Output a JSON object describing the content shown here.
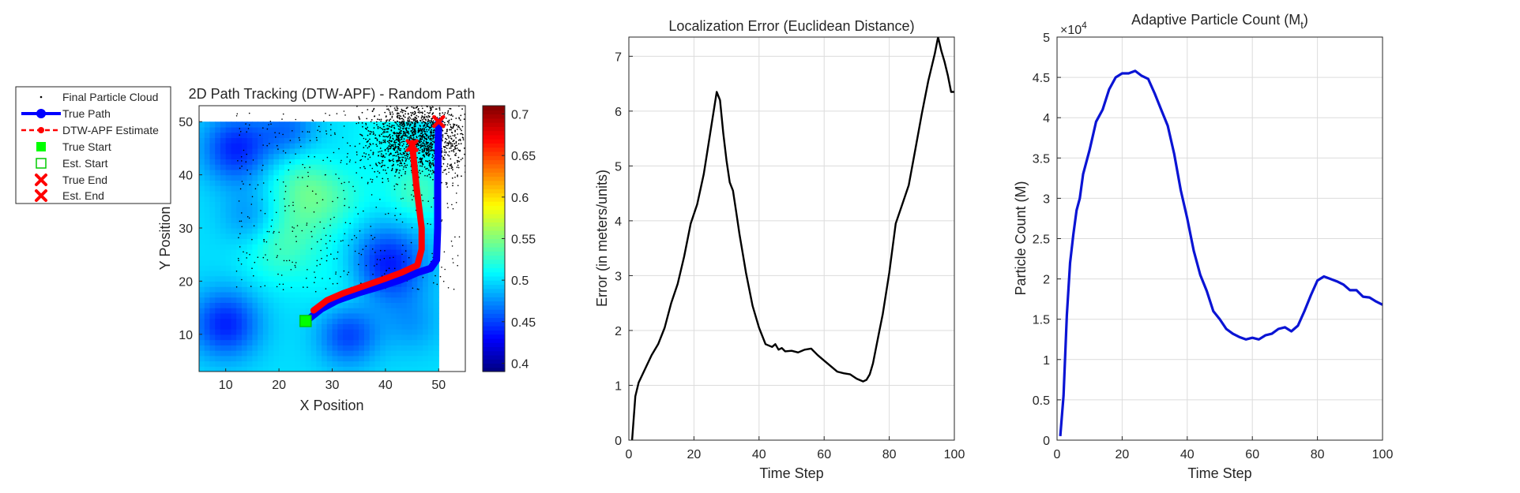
{
  "colors": {
    "true_path": "#0000ff",
    "estimate": "#ff0000",
    "true_start": "#00ff00",
    "est_start": "#00cc00",
    "particles": "#000000",
    "error_line": "#000000",
    "count_line": "#0a14d4",
    "grid": "#dcdcdc"
  },
  "chart_data": [
    {
      "type": "heatmap",
      "title": "2D Path Tracking (DTW-APF) - Random Path",
      "xlabel": "X Position",
      "ylabel": "Y Position",
      "xlim": [
        5,
        55
      ],
      "ylim": [
        3,
        53
      ],
      "xticks": [
        "10",
        "20",
        "30",
        "40",
        "50"
      ],
      "yticks": [
        "10",
        "20",
        "30",
        "40",
        "50"
      ],
      "colormap": "jet",
      "colorbar": {
        "clim": [
          0.39,
          0.71
        ],
        "ticks": [
          "0.4",
          "0.45",
          "0.5",
          "0.55",
          "0.6",
          "0.65",
          "0.7"
        ]
      },
      "map_extent": {
        "x": [
          5,
          50
        ],
        "y": [
          3,
          50
        ]
      },
      "legend_position": "outside-left",
      "legend": [
        {
          "name": "Final Particle Cloud",
          "icon": "dot"
        },
        {
          "name": "True Path",
          "icon": "line-circle"
        },
        {
          "name": "DTW-APF Estimate",
          "icon": "dashed-dot"
        },
        {
          "name": "True Start",
          "icon": "filled-square"
        },
        {
          "name": "Est. Start",
          "icon": "open-square"
        },
        {
          "name": "True End",
          "icon": "x"
        },
        {
          "name": "Est. End",
          "icon": "x"
        }
      ],
      "series": [
        {
          "name": "True Path",
          "points": [
            [
              25.5,
              12.8
            ],
            [
              28,
              14.8
            ],
            [
              31,
              16.4
            ],
            [
              35,
              17.8
            ],
            [
              39,
              19.0
            ],
            [
              43,
              20.3
            ],
            [
              46,
              21.6
            ],
            [
              48.5,
              22.4
            ],
            [
              49.6,
              24
            ],
            [
              49.8,
              30
            ],
            [
              49.8,
              38
            ],
            [
              49.9,
              45
            ],
            [
              50,
              50
            ]
          ]
        },
        {
          "name": "DTW-APF Estimate",
          "points": [
            [
              26.5,
              14.5
            ],
            [
              29,
              16.4
            ],
            [
              32,
              17.7
            ],
            [
              36,
              19.1
            ],
            [
              40,
              20.5
            ],
            [
              43,
              21.6
            ],
            [
              46,
              23.0
            ],
            [
              46.8,
              26
            ],
            [
              46.8,
              30
            ],
            [
              46.3,
              34
            ],
            [
              45.8,
              38
            ],
            [
              45.4,
              42
            ],
            [
              45.0,
              46
            ]
          ]
        }
      ],
      "markers": {
        "true_start": [
          25,
          12.5
        ],
        "est_start": [
          25,
          12.5
        ],
        "true_end": [
          50,
          50
        ],
        "est_end": [
          45,
          45.5
        ]
      }
    },
    {
      "type": "line",
      "title": "Localization Error (Euclidean Distance)",
      "xlabel": "Time Step",
      "ylabel": "Error (in meters/units)",
      "xlim": [
        0,
        100
      ],
      "ylim": [
        0,
        7.35
      ],
      "xticks": [
        "0",
        "20",
        "40",
        "60",
        "80",
        "100"
      ],
      "yticks": [
        "0",
        "1",
        "2",
        "3",
        "4",
        "5",
        "6",
        "7"
      ],
      "grid": true,
      "series": [
        {
          "name": "Localization Error",
          "x": [
            1,
            2,
            3,
            5,
            7,
            9,
            11,
            13,
            15,
            17,
            19,
            21,
            23,
            25,
            27,
            28,
            29,
            30,
            31,
            32,
            33,
            34,
            35,
            36,
            38,
            40,
            42,
            44,
            45,
            46,
            47,
            48,
            50,
            52,
            54,
            56,
            58,
            60,
            62,
            64,
            66,
            68,
            70,
            72,
            73,
            74,
            75,
            76,
            77,
            78,
            80,
            82,
            84,
            86,
            88,
            90,
            92,
            94,
            95,
            96,
            97,
            98,
            99,
            100
          ],
          "y": [
            0.0,
            0.8,
            1.05,
            1.3,
            1.55,
            1.75,
            2.05,
            2.5,
            2.85,
            3.35,
            3.95,
            4.3,
            4.85,
            5.6,
            6.35,
            6.2,
            5.6,
            5.1,
            4.7,
            4.55,
            4.15,
            3.75,
            3.4,
            3.05,
            2.45,
            2.05,
            1.75,
            1.7,
            1.75,
            1.65,
            1.68,
            1.62,
            1.63,
            1.6,
            1.65,
            1.67,
            1.55,
            1.45,
            1.35,
            1.25,
            1.22,
            1.2,
            1.12,
            1.07,
            1.1,
            1.2,
            1.4,
            1.7,
            2.0,
            2.3,
            3.05,
            3.95,
            4.3,
            4.65,
            5.3,
            5.95,
            6.55,
            7.05,
            7.35,
            7.1,
            6.9,
            6.65,
            6.35,
            6.35
          ]
        }
      ]
    },
    {
      "type": "line",
      "title": "Adaptive Particle Count (M",
      "title_subscript": "t",
      "title_suffix": ")",
      "xlabel": "Time Step",
      "ylabel": "Particle Count (M)",
      "exponent_label": "×10",
      "exponent_power": "4",
      "xlim": [
        0,
        100
      ],
      "ylim": [
        0,
        5
      ],
      "xticks": [
        "0",
        "20",
        "40",
        "60",
        "80",
        "100"
      ],
      "yticks": [
        "0",
        "0.5",
        "1",
        "1.5",
        "2",
        "2.5",
        "3",
        "3.5",
        "4",
        "4.5",
        "5"
      ],
      "grid": true,
      "series": [
        {
          "name": "Particle Count",
          "x": [
            1,
            2,
            3,
            4,
            5,
            6,
            7,
            8,
            10,
            12,
            14,
            16,
            18,
            20,
            22,
            24,
            25,
            26,
            28,
            30,
            32,
            34,
            36,
            38,
            40,
            42,
            44,
            46,
            48,
            50,
            52,
            54,
            56,
            58,
            60,
            62,
            64,
            66,
            68,
            70,
            72,
            74,
            76,
            78,
            80,
            82,
            84,
            86,
            88,
            90,
            92,
            94,
            96,
            98,
            100
          ],
          "y": [
            0.05,
            0.55,
            1.55,
            2.2,
            2.55,
            2.85,
            3.0,
            3.3,
            3.6,
            3.95,
            4.1,
            4.35,
            4.5,
            4.55,
            4.55,
            4.58,
            4.55,
            4.52,
            4.48,
            4.3,
            4.1,
            3.9,
            3.55,
            3.1,
            2.75,
            2.35,
            2.05,
            1.85,
            1.6,
            1.5,
            1.38,
            1.32,
            1.28,
            1.25,
            1.27,
            1.25,
            1.3,
            1.32,
            1.38,
            1.4,
            1.35,
            1.42,
            1.6,
            1.8,
            1.98,
            2.03,
            2.0,
            1.97,
            1.93,
            1.86,
            1.86,
            1.78,
            1.77,
            1.72,
            1.68
          ]
        }
      ]
    }
  ]
}
